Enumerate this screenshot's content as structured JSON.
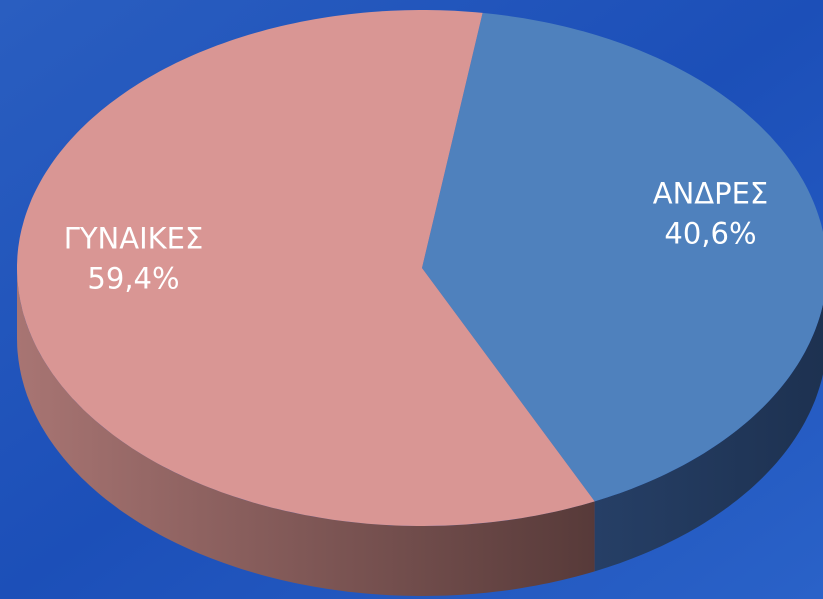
{
  "chart_data": {
    "type": "pie",
    "categories": [
      "ΑΝΔΡΕΣ",
      "ΓΥΝΑΙΚΕΣ"
    ],
    "values": [
      40.6,
      59.4
    ],
    "value_labels": [
      "40,6%",
      "59,4%"
    ],
    "colors": [
      "#4f81bd",
      "#d99694"
    ]
  }
}
